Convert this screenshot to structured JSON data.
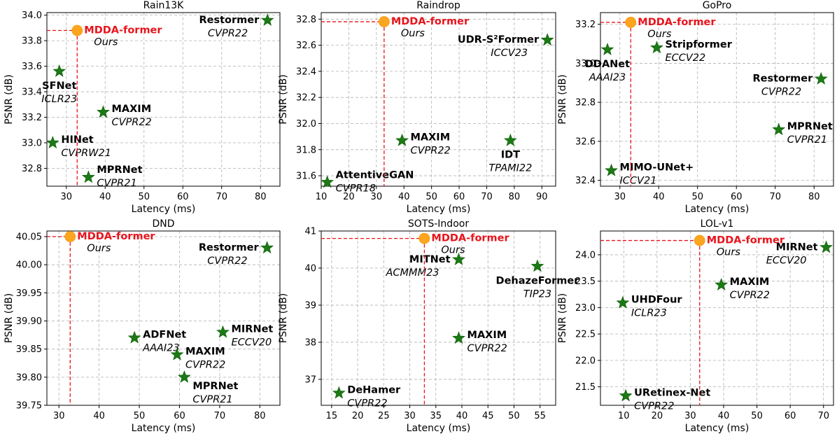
{
  "chart_data": [
    {
      "type": "scatter",
      "title": "Rain13K",
      "xlabel": "Latency (ms)",
      "ylabel": "PSNR (dB)",
      "xlim": [
        25,
        85
      ],
      "ylim": [
        32.66,
        34.02
      ],
      "xticks": [
        30,
        40,
        50,
        60,
        70,
        80
      ],
      "yticks": [
        32.8,
        33.0,
        33.2,
        33.4,
        33.6,
        33.8,
        34.0
      ],
      "ytick_labels": [
        "32.8",
        "33.0",
        "33.2",
        "33.4",
        "33.6",
        "33.8",
        "34.0"
      ],
      "ours": {
        "name": "MDDA-former",
        "venue": "Ours",
        "x": 32.8,
        "y": 33.88
      },
      "points": [
        {
          "name": "Restormer",
          "venue": "CVPR22",
          "x": 81.8,
          "y": 33.96,
          "label": "left"
        },
        {
          "name": "SFNet",
          "venue": "ICLR23",
          "x": 28.2,
          "y": 33.56,
          "label": "below"
        },
        {
          "name": "MAXIM",
          "venue": "CVPR22",
          "x": 39.5,
          "y": 33.24,
          "label": "right"
        },
        {
          "name": "HINet",
          "venue": "CVPRW21",
          "x": 26.5,
          "y": 33.0,
          "label": "right"
        },
        {
          "name": "MPRNet",
          "venue": "CVPR21",
          "x": 35.7,
          "y": 32.73,
          "label": "right-above"
        }
      ]
    },
    {
      "type": "scatter",
      "title": "Raindrop",
      "xlabel": "Latency (ms)",
      "ylabel": "PSNR (dB)",
      "xlim": [
        10,
        95
      ],
      "ylim": [
        31.52,
        32.85
      ],
      "xticks": [
        10,
        20,
        30,
        40,
        50,
        60,
        70,
        80,
        90
      ],
      "yticks": [
        31.6,
        31.8,
        32.0,
        32.2,
        32.4,
        32.6,
        32.8
      ],
      "ytick_labels": [
        "31.6",
        "31.8",
        "32.0",
        "32.2",
        "32.4",
        "32.6",
        "32.8"
      ],
      "ours": {
        "name": "MDDA-former",
        "venue": "Ours",
        "x": 32.8,
        "y": 32.78
      },
      "points": [
        {
          "name": "UDR-S²Former",
          "venue": "ICCV23",
          "x": 92.0,
          "y": 32.64,
          "label": "left"
        },
        {
          "name": "MAXIM",
          "venue": "CVPR22",
          "x": 39.3,
          "y": 31.87,
          "label": "right"
        },
        {
          "name": "IDT",
          "venue": "TPAMI22",
          "x": 78.6,
          "y": 31.87,
          "label": "below"
        },
        {
          "name": "AttentiveGAN",
          "venue": "CVPR18",
          "x": 12.2,
          "y": 31.55,
          "label": "right-above"
        }
      ]
    },
    {
      "type": "scatter",
      "title": "GoPro",
      "xlabel": "Latency (ms)",
      "ylabel": "PSNR (dB)",
      "xlim": [
        25,
        85
      ],
      "ylim": [
        32.37,
        33.26
      ],
      "xticks": [
        30,
        40,
        50,
        60,
        70,
        80
      ],
      "yticks": [
        32.4,
        32.6,
        32.8,
        33.0,
        33.2
      ],
      "ytick_labels": [
        "32.4",
        "32.6",
        "32.8",
        "33.0",
        "33.2"
      ],
      "ours": {
        "name": "MDDA-former",
        "venue": "Ours",
        "x": 32.8,
        "y": 33.21
      },
      "points": [
        {
          "name": "DDANet",
          "venue": "AAAI23",
          "x": 26.8,
          "y": 33.07,
          "label": "below"
        },
        {
          "name": "Stripformer",
          "venue": "ECCV22",
          "x": 39.5,
          "y": 33.08,
          "label": "right"
        },
        {
          "name": "Restormer",
          "venue": "CVPR22",
          "x": 81.8,
          "y": 32.92,
          "label": "left"
        },
        {
          "name": "MPRNet",
          "venue": "CVPR21",
          "x": 70.9,
          "y": 32.66,
          "label": "right"
        },
        {
          "name": "MIMO-UNet+",
          "venue": "ICCV21",
          "x": 27.8,
          "y": 32.45,
          "label": "right"
        }
      ]
    },
    {
      "type": "scatter",
      "title": "DND",
      "xlabel": "Latency (ms)",
      "ylabel": "PSNR (dB)",
      "xlim": [
        27,
        85
      ],
      "ylim": [
        39.75,
        40.06
      ],
      "xticks": [
        30,
        40,
        50,
        60,
        70,
        80
      ],
      "yticks": [
        39.75,
        39.8,
        39.85,
        39.9,
        39.95,
        40.0,
        40.05
      ],
      "ytick_labels": [
        "39.75",
        "39.80",
        "39.85",
        "39.90",
        "39.95",
        "40.00",
        "40.05"
      ],
      "ours": {
        "name": "MDDA-former",
        "venue": "Ours",
        "x": 32.8,
        "y": 40.05
      },
      "points": [
        {
          "name": "Restormer",
          "venue": "CVPR22",
          "x": 81.8,
          "y": 40.03,
          "label": "left"
        },
        {
          "name": "ADFNet",
          "venue": "AAAI23",
          "x": 48.8,
          "y": 39.87,
          "label": "right"
        },
        {
          "name": "MAXIM",
          "venue": "CVPR22",
          "x": 59.4,
          "y": 39.84,
          "label": "right"
        },
        {
          "name": "MIRNet",
          "venue": "ECCV20",
          "x": 70.8,
          "y": 39.88,
          "label": "right"
        },
        {
          "name": "MPRNet",
          "venue": "CVPR21",
          "x": 61.2,
          "y": 39.8,
          "label": "right-below"
        }
      ]
    },
    {
      "type": "scatter",
      "title": "SOTS-Indoor",
      "xlabel": "Latency (ms)",
      "ylabel": "PSNR (dB)",
      "xlim": [
        13,
        58
      ],
      "ylim": [
        36.3,
        41.0
      ],
      "xticks": [
        15,
        20,
        25,
        30,
        35,
        40,
        45,
        50,
        55
      ],
      "yticks": [
        37,
        38,
        39,
        40,
        41
      ],
      "ytick_labels": [
        "37",
        "38",
        "39",
        "40",
        "41"
      ],
      "ours": {
        "name": "MDDA-former",
        "venue": "Ours",
        "x": 32.8,
        "y": 40.8
      },
      "points": [
        {
          "name": "MITNet",
          "venue": "ACMMM23",
          "x": 39.4,
          "y": 40.23,
          "label": "left"
        },
        {
          "name": "DehazeFormer",
          "venue": "TIP23",
          "x": 54.5,
          "y": 40.05,
          "label": "below"
        },
        {
          "name": "MAXIM",
          "venue": "CVPR22",
          "x": 39.4,
          "y": 38.11,
          "label": "right"
        },
        {
          "name": "DeHamer",
          "venue": "CVPR22",
          "x": 16.4,
          "y": 36.63,
          "label": "right"
        }
      ]
    },
    {
      "type": "scatter",
      "title": "LOL-v1",
      "xlabel": "Latency (ms)",
      "ylabel": "PSNR (dB)",
      "xlim": [
        3,
        73
      ],
      "ylim": [
        21.15,
        24.45
      ],
      "xticks": [
        10,
        20,
        30,
        40,
        50,
        60,
        70
      ],
      "yticks": [
        21.5,
        22.0,
        22.5,
        23.0,
        23.5,
        24.0
      ],
      "ytick_labels": [
        "21.5",
        "22.0",
        "22.5",
        "23.0",
        "23.5",
        "24.0"
      ],
      "ours": {
        "name": "MDDA-former",
        "venue": "Ours",
        "x": 32.8,
        "y": 24.27
      },
      "points": [
        {
          "name": "MIRNet",
          "venue": "ECCV20",
          "x": 70.8,
          "y": 24.14,
          "label": "left"
        },
        {
          "name": "MAXIM",
          "venue": "CVPR22",
          "x": 39.3,
          "y": 23.43,
          "label": "right"
        },
        {
          "name": "UHDFour",
          "venue": "ICLR23",
          "x": 9.7,
          "y": 23.09,
          "label": "right"
        },
        {
          "name": "URetinex-Net",
          "venue": "CVPR22",
          "x": 10.6,
          "y": 21.33,
          "label": "right"
        }
      ]
    }
  ]
}
